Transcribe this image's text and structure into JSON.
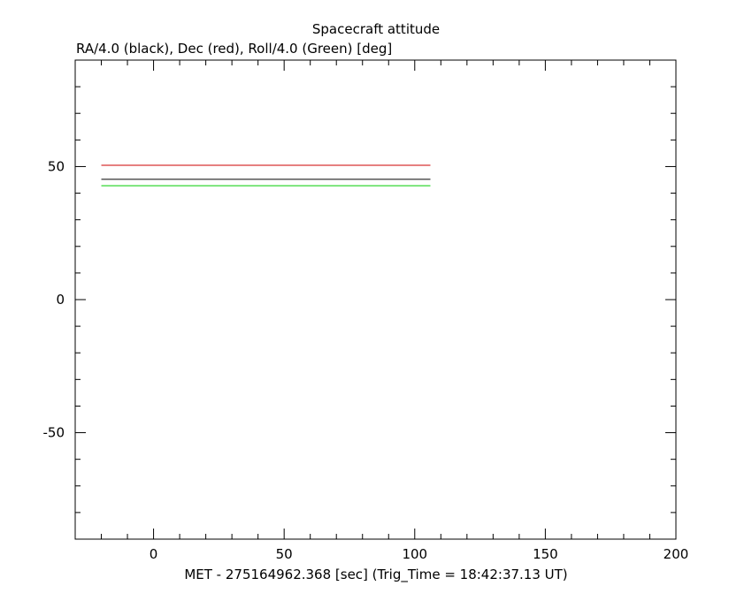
{
  "chart_data": {
    "type": "line",
    "title": "Spacecraft attitude",
    "ylabel": "RA/4.0 (black), Dec (red), Roll/4.0 (Green) [deg]",
    "xlabel": "MET - 275164962.368 [sec] (Trig_Time = 18:42:37.13 UT)",
    "xlim": [
      -30,
      200
    ],
    "ylim": [
      -90,
      90
    ],
    "x_ticks": [
      0,
      50,
      100,
      150,
      200
    ],
    "x_tick_labels": [
      "0",
      "50",
      "100",
      "150",
      "200"
    ],
    "y_ticks": [
      -50,
      0,
      50
    ],
    "y_tick_labels": [
      "-50",
      "0",
      "50"
    ],
    "x_minor_step": 10,
    "y_minor_step": 10,
    "grid": false,
    "series": [
      {
        "color": "#cc0000",
        "x": [
          -20,
          106
        ],
        "y": [
          50.5,
          50.5
        ]
      },
      {
        "color": "#000000",
        "x": [
          -20,
          106
        ],
        "y": [
          45.2,
          45.2
        ]
      },
      {
        "color": "#00cc00",
        "x": [
          -20,
          106
        ],
        "y": [
          42.8,
          42.8
        ]
      }
    ]
  }
}
